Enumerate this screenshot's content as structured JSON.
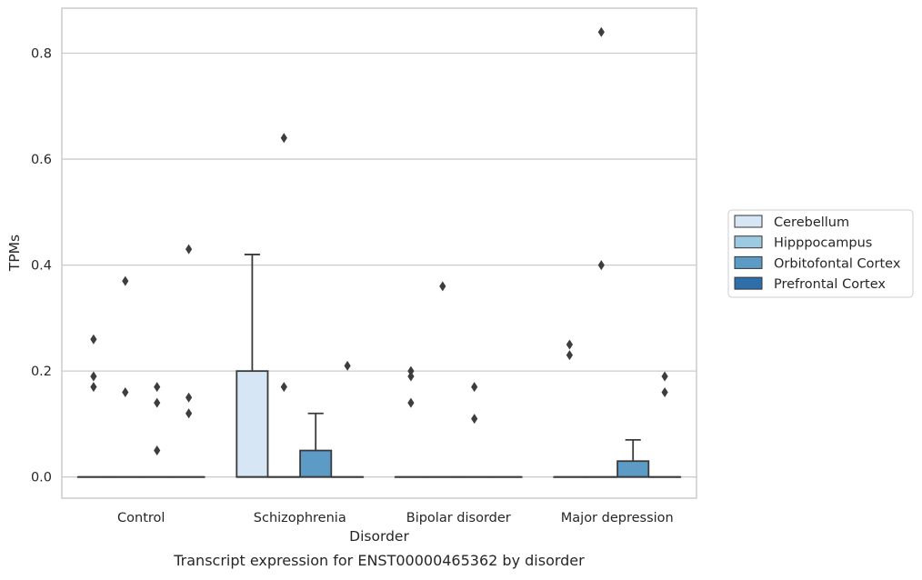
{
  "chart_data": {
    "type": "box",
    "caption": "Transcript expression for ENST00000465362 by disorder",
    "xlabel": "Disorder",
    "ylabel": "TPMs",
    "ylim": [
      -0.04,
      0.885
    ],
    "yticks": [
      0.0,
      0.2,
      0.4,
      0.6,
      0.8
    ],
    "ytick_labels": [
      "0.0",
      "0.2",
      "0.4",
      "0.6",
      "0.8"
    ],
    "grid": "horizontal",
    "legend_position": "right",
    "categories": [
      "Control",
      "Schizophrenia",
      "Bipolar disorder",
      "Major depression"
    ],
    "series": [
      {
        "name": "Cerebellum",
        "color": "#d6e6f4",
        "boxes": [
          {
            "q1": 0,
            "median": 0,
            "q3": 0,
            "whisker_low": 0,
            "whisker_high": 0,
            "outliers": [
              0.26,
              0.19,
              0.17
            ]
          },
          {
            "q1": 0,
            "median": 0,
            "q3": 0.2,
            "whisker_low": 0,
            "whisker_high": 0.42,
            "outliers": []
          },
          {
            "q1": 0,
            "median": 0,
            "q3": 0,
            "whisker_low": 0,
            "whisker_high": 0,
            "outliers": [
              0.2,
              0.19,
              0.14
            ]
          },
          {
            "q1": 0,
            "median": 0,
            "q3": 0,
            "whisker_low": 0,
            "whisker_high": 0,
            "outliers": [
              0.25,
              0.23
            ]
          }
        ]
      },
      {
        "name": "Hipppocampus",
        "color": "#9ecae1",
        "boxes": [
          {
            "q1": 0,
            "median": 0,
            "q3": 0,
            "whisker_low": 0,
            "whisker_high": 0,
            "outliers": [
              0.37,
              0.16
            ]
          },
          {
            "q1": 0,
            "median": 0,
            "q3": 0,
            "whisker_low": 0,
            "whisker_high": 0,
            "outliers": [
              0.64,
              0.17
            ]
          },
          {
            "q1": 0,
            "median": 0,
            "q3": 0,
            "whisker_low": 0,
            "whisker_high": 0,
            "outliers": [
              0.36
            ]
          },
          {
            "q1": 0,
            "median": 0,
            "q3": 0,
            "whisker_low": 0,
            "whisker_high": 0,
            "outliers": [
              0.84,
              0.4
            ]
          }
        ]
      },
      {
        "name": "Orbitofontal Cortex",
        "color": "#5b9bc5",
        "boxes": [
          {
            "q1": 0,
            "median": 0,
            "q3": 0,
            "whisker_low": 0,
            "whisker_high": 0,
            "outliers": [
              0.17,
              0.14,
              0.05
            ]
          },
          {
            "q1": 0,
            "median": 0,
            "q3": 0.05,
            "whisker_low": 0,
            "whisker_high": 0.12,
            "outliers": []
          },
          {
            "q1": 0,
            "median": 0,
            "q3": 0,
            "whisker_low": 0,
            "whisker_high": 0,
            "outliers": [
              0.17,
              0.11
            ]
          },
          {
            "q1": 0,
            "median": 0,
            "q3": 0.03,
            "whisker_low": 0,
            "whisker_high": 0.07,
            "outliers": []
          }
        ]
      },
      {
        "name": "Prefrontal Cortex",
        "color": "#2f6fa9",
        "boxes": [
          {
            "q1": 0,
            "median": 0,
            "q3": 0,
            "whisker_low": 0,
            "whisker_high": 0,
            "outliers": [
              0.43,
              0.15,
              0.12
            ]
          },
          {
            "q1": 0,
            "median": 0,
            "q3": 0,
            "whisker_low": 0,
            "whisker_high": 0,
            "outliers": [
              0.21
            ]
          },
          {
            "q1": 0,
            "median": 0,
            "q3": 0,
            "whisker_low": 0,
            "whisker_high": 0,
            "outliers": []
          },
          {
            "q1": 0,
            "median": 0,
            "q3": 0,
            "whisker_low": 0,
            "whisker_high": 0,
            "outliers": [
              0.19,
              0.16
            ]
          }
        ]
      }
    ]
  }
}
